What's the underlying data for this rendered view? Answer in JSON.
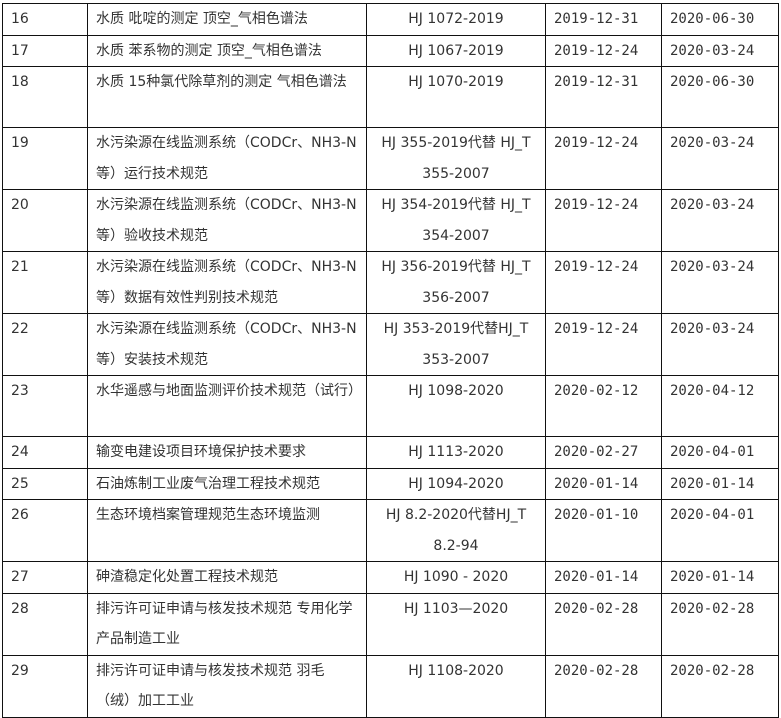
{
  "rows": [
    {
      "no": "16",
      "name": "水质 吡啶的测定 顶空_气相色谱法",
      "code": "HJ 1072-2019",
      "issued": "2019-12-31",
      "effective": "2020-06-30",
      "lines": 1
    },
    {
      "no": "17",
      "name": "水质 苯系物的测定 顶空_气相色谱法",
      "code": "HJ 1067-2019",
      "issued": "2019-12-24",
      "effective": "2020-03-24",
      "lines": 1
    },
    {
      "no": "18",
      "name": "水质 15种氯代除草剂的测定 气相色谱法",
      "code": "HJ 1070-2019",
      "issued": "2019-12-31",
      "effective": "2020-06-30",
      "lines": 2
    },
    {
      "no": "19",
      "name": "水污染源在线监测系统（CODCr、NH3-N 等）运行技术规范",
      "code": "HJ 355-2019代替 HJ_T 355-2007",
      "issued": "2019-12-24",
      "effective": "2020-03-24",
      "lines": 2
    },
    {
      "no": "20",
      "name": "水污染源在线监测系统（CODCr、NH3-N 等）验收技术规范",
      "code": "HJ 354-2019代替 HJ_T 354-2007",
      "issued": "2019-12-24",
      "effective": "2020-03-24",
      "lines": 2
    },
    {
      "no": "21",
      "name": "水污染源在线监测系统（CODCr、NH3-N 等）数据有效性判别技术规范",
      "code": "HJ 356-2019代替 HJ_T 356-2007",
      "issued": "2019-12-24",
      "effective": "2020-03-24",
      "lines": 2
    },
    {
      "no": "22",
      "name": "水污染源在线监测系统（CODCr、NH3-N 等）安装技术规范",
      "code": "HJ 353-2019代替HJ_T 353-2007",
      "issued": "2019-12-24",
      "effective": "2020-03-24",
      "lines": 2
    },
    {
      "no": "23",
      "name": "水华遥感与地面监测评价技术规范（试行）",
      "code": "HJ 1098-2020",
      "issued": "2020-02-12",
      "effective": "2020-04-12",
      "lines": 2
    },
    {
      "no": "24",
      "name": "输变电建设项目环境保护技术要求",
      "code": "HJ 1113-2020",
      "issued": "2020-02-27",
      "effective": "2020-04-01",
      "lines": 1
    },
    {
      "no": "25",
      "name": "石油炼制工业废气治理工程技术规范",
      "code": "HJ 1094-2020",
      "issued": "2020-01-14",
      "effective": "2020-01-14",
      "lines": 1
    },
    {
      "no": "26",
      "name": "生态环境档案管理规范生态环境监测",
      "code": "HJ 8.2-2020代替HJ_T 8.2-94",
      "issued": "2020-01-10",
      "effective": "2020-04-01",
      "lines": 2
    },
    {
      "no": "27",
      "name": "砷渣稳定化处置工程技术规范",
      "code": "HJ 1090 - 2020",
      "issued": "2020-01-14",
      "effective": "2020-01-14",
      "lines": 1
    },
    {
      "no": "28",
      "name": "排污许可证申请与核发技术规范 专用化学产品制造工业",
      "code": "HJ 1103—2020",
      "issued": "2020-02-28",
      "effective": "2020-02-28",
      "lines": 2
    },
    {
      "no": "29",
      "name": "排污许可证申请与核发技术规范 羽毛（绒）加工工业",
      "code": "HJ 1108-2020",
      "issued": "2020-02-28",
      "effective": "2020-02-28",
      "lines": 2
    }
  ]
}
